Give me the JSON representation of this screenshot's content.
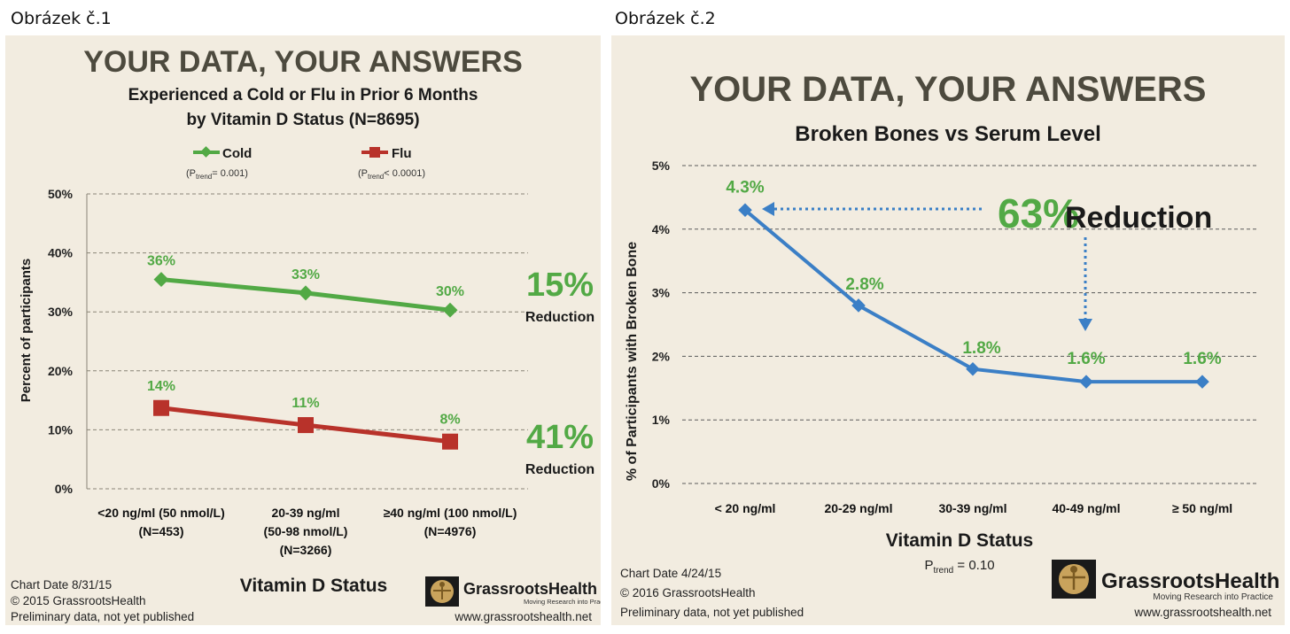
{
  "captions": {
    "left": "Obrázek č.1",
    "right": "Obrázek č.2"
  },
  "left_panel": {
    "headline": "YOUR DATA, YOUR ANSWERS",
    "subtitle_line1": "Experienced a Cold or Flu in Prior 6 Months",
    "subtitle_line2": "by Vitamin D Status (N=8695)",
    "legend": [
      {
        "name": "Cold",
        "note_pre": "(P",
        "note_sub": "trend",
        "note_post": "= 0.001)"
      },
      {
        "name": "Flu",
        "note_pre": "(P",
        "note_sub": "trend",
        "note_post": "< 0.0001)"
      }
    ],
    "reductions": [
      {
        "pct": "15%",
        "label": "Reduction"
      },
      {
        "pct": "41%",
        "label": "Reduction"
      }
    ],
    "footer": {
      "date": "Chart Date 8/31/15",
      "copyright": "© 2015 GrassrootsHealth",
      "note": "Preliminary data, not yet published"
    },
    "logo": {
      "name": "GrassrootsHealth",
      "tagline": "Moving Research into Practice",
      "url": "www.grassrootshealth.net"
    }
  },
  "right_panel": {
    "headline": "YOUR DATA, YOUR ANSWERS",
    "subtitle": "Broken Bones vs Serum Level",
    "annotation_pct": "63%",
    "annotation_word": "Reduction",
    "ptrend_pre": "P",
    "ptrend_sub": "trend",
    "ptrend_post": " = 0.10",
    "footer": {
      "date": "Chart Date 4/24/15",
      "copyright": "© 2016 GrassrootsHealth",
      "note": "Preliminary data, not yet published"
    },
    "logo": {
      "name": "GrassrootsHealth",
      "tagline": "Moving Research into Practice",
      "url": "www.grassrootshealth.net"
    }
  },
  "colors": {
    "green": "#52a945",
    "red": "#b8322a",
    "blue": "#3b7fc6",
    "panel_bg": "#f2ece0"
  },
  "chart_data": [
    {
      "type": "line",
      "xlabel": "Vitamin D Status",
      "ylabel": "Percent of participants",
      "ylim": [
        0,
        50
      ],
      "yticks": [
        "0%",
        "10%",
        "20%",
        "30%",
        "40%",
        "50%"
      ],
      "categories": [
        [
          "<20 ng/ml (50 nmol/L)",
          "(N=453)"
        ],
        [
          "20-39 ng/ml",
          "(50-98 nmol/L)",
          "(N=3266)"
        ],
        [
          "≥40 ng/ml (100 nmol/L)",
          "(N=4976)"
        ]
      ],
      "series": [
        {
          "name": "Cold",
          "values": [
            35.5,
            33.2,
            30.3
          ],
          "labels": [
            "36%",
            "33%",
            "30%"
          ],
          "color": "#52a945",
          "marker": "diamond"
        },
        {
          "name": "Flu",
          "values": [
            13.7,
            10.8,
            8.0
          ],
          "labels": [
            "14%",
            "11%",
            "8%"
          ],
          "color": "#b8322a",
          "marker": "square"
        }
      ],
      "grid": true
    },
    {
      "type": "line",
      "xlabel": "Vitamin D Status",
      "ylabel": "% of Participants with Broken Bone",
      "ylim": [
        0,
        5
      ],
      "yticks": [
        "0%",
        "1%",
        "2%",
        "3%",
        "4%",
        "5%"
      ],
      "categories": [
        "< 20 ng/ml",
        "20-29 ng/ml",
        "30-39 ng/ml",
        "40-49 ng/ml",
        "≥ 50 ng/ml"
      ],
      "series": [
        {
          "values": [
            4.3,
            2.8,
            1.8,
            1.6,
            1.6
          ],
          "labels": [
            "4.3%",
            "2.8%",
            "1.8%",
            "1.6%",
            "1.6%"
          ],
          "color": "#3b7fc6",
          "marker": "diamond"
        }
      ],
      "grid": true
    }
  ]
}
